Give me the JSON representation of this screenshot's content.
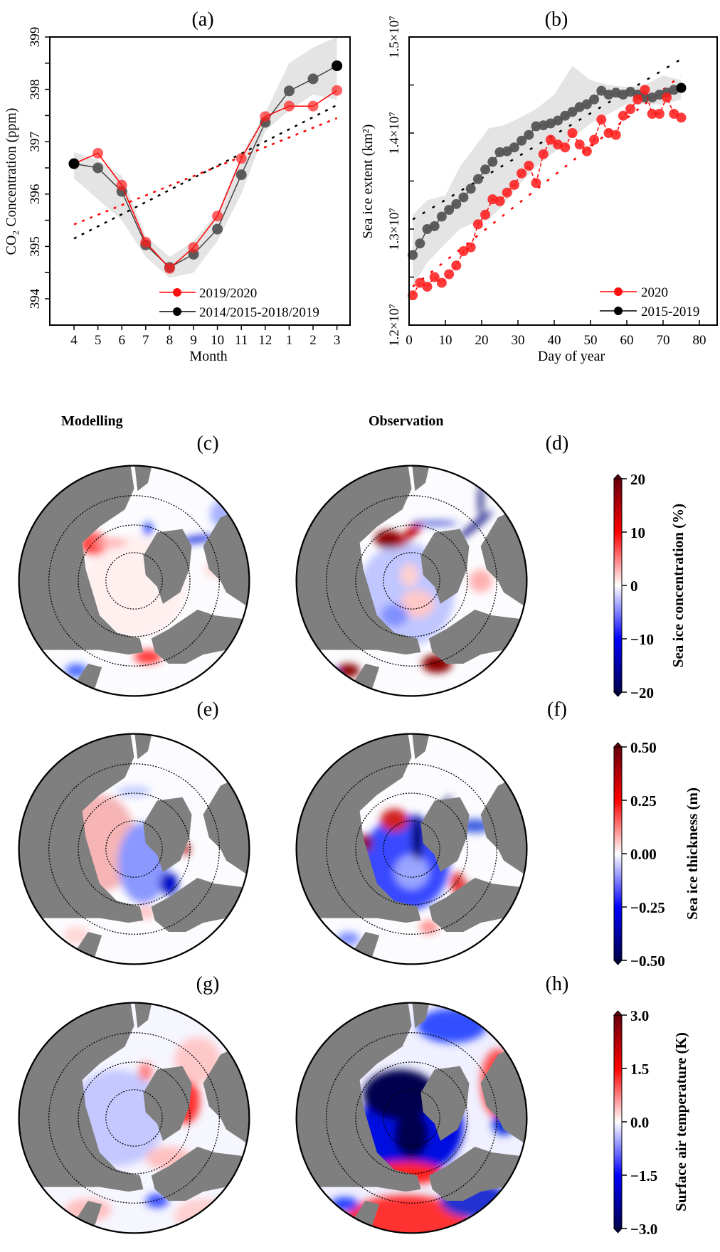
{
  "figure": {
    "column_headers": {
      "modelling": "Modelling",
      "observation": "Observation"
    }
  },
  "chart_data": [
    {
      "panel": "a",
      "type": "line",
      "title": "(a)",
      "xlabel": "Month",
      "ylabel": "CO₂ Concentration (ppm)",
      "categories": [
        "4",
        "5",
        "6",
        "7",
        "8",
        "9",
        "10",
        "11",
        "12",
        "1",
        "2",
        "3"
      ],
      "ylim": [
        393.5,
        399
      ],
      "yticks": [
        "394",
        "395",
        "396",
        "397",
        "398",
        "399"
      ],
      "legend": "bottom-right",
      "series": [
        {
          "name": "2019/2020",
          "color": "#ff0000",
          "values": [
            396.58,
            396.78,
            396.17,
            395.08,
            394.58,
            394.98,
            395.58,
            396.68,
            397.48,
            397.68,
            397.68,
            397.98
          ],
          "trend": [
            395.42,
            397.45
          ]
        },
        {
          "name": "2014/2015-2018/2019",
          "color": "#555555",
          "values": [
            396.58,
            396.5,
            396.05,
            395.03,
            394.6,
            394.85,
            395.33,
            396.37,
            397.37,
            397.97,
            398.2,
            398.45
          ],
          "trend": [
            395.15,
            397.7
          ],
          "band_upper": [
            396.8,
            396.65,
            396.35,
            395.2,
            394.8,
            395.1,
            395.65,
            396.75,
            397.55,
            398.5,
            398.8,
            399.0
          ],
          "band_lower": [
            396.3,
            395.9,
            395.5,
            394.8,
            394.4,
            394.5,
            395.1,
            396.0,
            397.2,
            397.6,
            397.9,
            397.8
          ]
        }
      ]
    },
    {
      "panel": "b",
      "type": "line",
      "title": "(b)",
      "xlabel": "Day of year",
      "ylabel": "Sea ice extent (km²)",
      "xlim": [
        0,
        85
      ],
      "xticks": [
        "0",
        "10",
        "20",
        "30",
        "40",
        "50",
        "60",
        "70",
        "80"
      ],
      "ylim": [
        1.2,
        1.5
      ],
      "y_multiplier": 10000000,
      "yticks": [
        "1.2×10⁷",
        "1.3×10⁷",
        "1.4×10⁷",
        "1.5×10⁷"
      ],
      "legend": "bottom-right",
      "x": [
        1,
        3,
        5,
        7,
        9,
        11,
        13,
        15,
        17,
        19,
        21,
        23,
        25,
        27,
        29,
        31,
        33,
        35,
        37,
        39,
        41,
        43,
        45,
        47,
        49,
        51,
        53,
        55,
        57,
        59,
        61,
        63,
        65,
        67,
        69,
        71,
        73,
        75
      ],
      "series": [
        {
          "name": "2020",
          "color": "#ff0000",
          "values": [
            1.231,
            1.244,
            1.24,
            1.25,
            1.244,
            1.253,
            1.262,
            1.277,
            1.281,
            1.305,
            1.315,
            1.331,
            1.329,
            1.338,
            1.346,
            1.358,
            1.366,
            1.348,
            1.378,
            1.393,
            1.388,
            1.385,
            1.4,
            1.388,
            1.381,
            1.393,
            1.414,
            1.4,
            1.398,
            1.418,
            1.425,
            1.435,
            1.445,
            1.42,
            1.42,
            1.437,
            1.42,
            1.416
          ],
          "trend": [
            1.24,
            1.46
          ]
        },
        {
          "name": "2015-2019",
          "color": "#555555",
          "values": [
            1.273,
            1.285,
            1.3,
            1.303,
            1.313,
            1.32,
            1.326,
            1.333,
            1.342,
            1.352,
            1.362,
            1.37,
            1.38,
            1.381,
            1.385,
            1.392,
            1.398,
            1.407,
            1.408,
            1.41,
            1.413,
            1.418,
            1.422,
            1.427,
            1.43,
            1.435,
            1.444,
            1.44,
            1.442,
            1.44,
            1.443,
            1.44,
            1.437,
            1.437,
            1.44,
            1.442,
            1.445,
            1.447
          ],
          "trend": [
            1.31,
            1.477
          ],
          "band_x": [
            1,
            5,
            10,
            14,
            17,
            22,
            26,
            30,
            35,
            40,
            45,
            50,
            55,
            60,
            65,
            70,
            75
          ],
          "band_upper": [
            1.315,
            1.33,
            1.335,
            1.365,
            1.38,
            1.405,
            1.408,
            1.415,
            1.425,
            1.44,
            1.47,
            1.455,
            1.45,
            1.448,
            1.45,
            1.46,
            1.455
          ],
          "band_lower": [
            1.24,
            1.265,
            1.285,
            1.3,
            1.305,
            1.31,
            1.325,
            1.345,
            1.365,
            1.38,
            1.395,
            1.41,
            1.42,
            1.43,
            1.43,
            1.43,
            1.435
          ]
        }
      ]
    },
    {
      "panel": "c",
      "type": "heatmap",
      "title": "(c)",
      "column": "Modelling",
      "variable": "Sea ice concentration (%)"
    },
    {
      "panel": "d",
      "type": "heatmap",
      "title": "(d)",
      "column": "Observation",
      "variable": "Sea ice concentration (%)",
      "colorbar": {
        "label": "Sea ice concentration (%)",
        "range": [
          -20,
          20
        ],
        "ticks": [
          "20",
          "10",
          "0",
          "−10",
          "−20"
        ]
      }
    },
    {
      "panel": "e",
      "type": "heatmap",
      "title": "(e)",
      "column": "Modelling",
      "variable": "Sea ice thickness (m)"
    },
    {
      "panel": "f",
      "type": "heatmap",
      "title": "(f)",
      "column": "Observation",
      "variable": "Sea ice thickness (m)",
      "colorbar": {
        "label": "Sea ice thickness (m)",
        "range": [
          -0.5,
          0.5
        ],
        "ticks": [
          "0.50",
          "0.25",
          "0.00",
          "−0.25",
          "−0.50"
        ]
      }
    },
    {
      "panel": "g",
      "type": "heatmap",
      "title": "(g)",
      "column": "Modelling",
      "variable": "Surface air temperature (K)"
    },
    {
      "panel": "h",
      "type": "heatmap",
      "title": "(h)",
      "column": "Observation",
      "variable": "Surface air temperature (K)",
      "colorbar": {
        "label": "Surface air temperature (K)",
        "range": [
          -3,
          3
        ],
        "ticks": [
          "3.0",
          "1.5",
          "0.0",
          "−1.5",
          "−3.0"
        ]
      }
    }
  ],
  "colormap": {
    "stops": [
      "#67000d",
      "#ff0000",
      "#ffffff",
      "#0000ff",
      "#00004d"
    ],
    "land": "#7f7f7f",
    "band": "#e4e4e4"
  }
}
